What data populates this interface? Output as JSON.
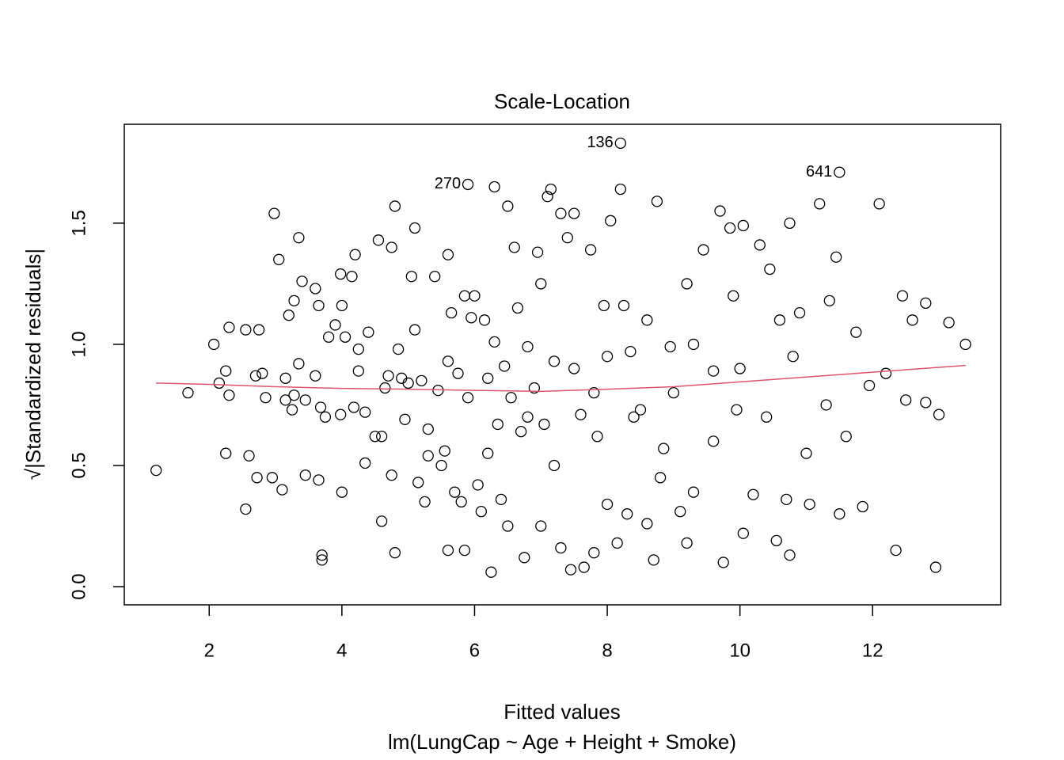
{
  "chart_data": {
    "type": "scatter",
    "title": "Scale-Location",
    "x_label": "Fitted values",
    "subtitle": "lm(LungCap ~ Age + Height + Smoke)",
    "y_label": "√|Standardized residuals|",
    "xlim": [
      0.72,
      13.93
    ],
    "ylim": [
      -0.075,
      1.908
    ],
    "xticks": [
      2,
      4,
      6,
      8,
      10,
      12
    ],
    "yticks": [
      {
        "value": 0,
        "label": "0.0"
      },
      0.5,
      {
        "value": 1,
        "label": "1.0"
      },
      1.5
    ],
    "color": "#000000",
    "x": [
      1.2,
      1.68,
      2.07,
      2.15,
      2.25,
      2.3,
      2.25,
      2.3,
      2.55,
      2.55,
      2.6,
      2.7,
      2.75,
      2.8,
      2.72,
      2.85,
      2.98,
      2.95,
      3.05,
      3.1,
      3.15,
      3.15,
      3.2,
      3.28,
      3.28,
      3.25,
      3.35,
      3.35,
      3.4,
      3.45,
      3.45,
      3.6,
      3.6,
      3.65,
      3.65,
      3.68,
      3.7,
      3.7,
      3.75,
      3.8,
      3.9,
      3.98,
      3.98,
      4.0,
      4.0,
      4.05,
      4.15,
      4.18,
      4.2,
      4.25,
      4.25,
      4.35,
      4.35,
      4.4,
      4.5,
      4.55,
      4.6,
      4.65,
      4.7,
      4.75,
      4.75,
      4.8,
      4.8,
      4.85,
      4.9,
      4.95,
      5.0,
      5.05,
      5.1,
      5.1,
      5.15,
      5.2,
      5.25,
      5.3,
      5.4,
      5.45,
      5.5,
      5.55,
      5.6,
      5.6,
      5.6,
      5.65,
      5.7,
      5.75,
      5.8,
      5.85,
      5.85,
      5.9,
      5.9,
      5.95,
      6.0,
      6.05,
      6.1,
      6.15,
      6.2,
      6.25,
      6.3,
      6.3,
      6.35,
      6.4,
      6.45,
      6.5,
      6.5,
      6.55,
      6.6,
      6.65,
      6.7,
      6.75,
      6.8,
      6.9,
      6.95,
      7.0,
      7.05,
      7.1,
      7.15,
      7.2,
      7.3,
      7.3,
      7.4,
      7.45,
      7.5,
      7.6,
      7.65,
      7.75,
      7.8,
      7.85,
      7.95,
      8.0,
      8.05,
      8.15,
      8.2,
      8.2,
      8.25,
      8.3,
      8.35,
      8.5,
      8.6,
      8.7,
      8.75,
      8.85,
      8.95,
      9.1,
      9.2,
      9.3,
      9.45,
      9.6,
      9.7,
      9.75,
      9.85,
      9.95,
      10.05,
      10.05,
      10.2,
      10.3,
      10.45,
      10.55,
      10.7,
      10.75,
      10.75,
      10.9,
      11.0,
      11.05,
      11.2,
      11.35,
      11.45,
      11.5,
      11.5,
      11.6,
      11.75,
      11.85,
      11.95,
      12.1,
      12.2,
      12.35,
      12.45,
      12.5,
      12.6,
      12.8,
      12.8,
      12.95,
      13.0,
      13.15,
      13.4,
      7.5,
      7.8,
      8.0,
      8.4,
      8.6,
      9.0,
      9.3,
      9.6,
      10.0,
      10.4,
      6.8,
      7.2,
      8.8,
      9.9,
      10.8,
      11.3,
      6.2,
      5.3,
      4.6,
      7.0,
      9.2,
      10.6
    ],
    "y": [
      0.48,
      0.8,
      1.0,
      0.84,
      0.89,
      1.07,
      0.55,
      0.79,
      1.06,
      0.32,
      0.54,
      0.87,
      1.06,
      0.88,
      0.45,
      0.78,
      1.54,
      0.45,
      1.35,
      0.4,
      0.86,
      0.77,
      1.12,
      1.18,
      0.79,
      0.73,
      1.44,
      0.92,
      1.26,
      0.46,
      0.77,
      1.23,
      0.87,
      1.16,
      0.44,
      0.74,
      0.13,
      0.11,
      0.7,
      1.03,
      1.08,
      1.29,
      0.71,
      1.16,
      0.39,
      1.03,
      1.28,
      0.74,
      1.37,
      0.98,
      0.89,
      0.72,
      0.51,
      1.05,
      0.62,
      1.43,
      0.27,
      0.82,
      0.87,
      1.4,
      0.46,
      1.57,
      0.14,
      0.98,
      0.86,
      0.69,
      0.84,
      1.28,
      1.48,
      1.06,
      0.43,
      0.85,
      0.35,
      0.54,
      1.28,
      0.81,
      0.5,
      0.56,
      1.37,
      0.93,
      0.15,
      1.13,
      0.39,
      0.88,
      0.35,
      1.2,
      0.15,
      1.66,
      0.78,
      1.11,
      1.2,
      0.42,
      0.31,
      1.1,
      0.86,
      0.06,
      1.65,
      1.01,
      0.67,
      0.36,
      0.91,
      1.57,
      0.25,
      0.78,
      1.4,
      1.15,
      0.64,
      0.12,
      0.99,
      0.82,
      1.38,
      0.25,
      0.67,
      1.61,
      1.64,
      0.93,
      1.54,
      0.16,
      1.44,
      0.07,
      1.54,
      0.71,
      0.08,
      1.39,
      0.14,
      0.62,
      1.16,
      0.34,
      1.51,
      0.18,
      1.83,
      1.64,
      1.16,
      0.3,
      0.97,
      0.73,
      0.26,
      0.11,
      1.59,
      0.57,
      0.99,
      0.31,
      0.18,
      0.39,
      1.39,
      0.89,
      1.55,
      0.1,
      1.48,
      0.73,
      1.49,
      0.22,
      0.38,
      1.41,
      1.31,
      0.19,
      0.36,
      1.5,
      0.13,
      1.13,
      0.55,
      0.34,
      1.58,
      1.18,
      1.36,
      1.71,
      0.3,
      0.62,
      1.05,
      0.33,
      0.83,
      1.58,
      0.88,
      0.15,
      1.2,
      0.77,
      1.1,
      1.17,
      0.76,
      0.08,
      0.71,
      1.09,
      1.0,
      0.9,
      0.8,
      0.95,
      0.7,
      1.1,
      0.8,
      1.0,
      0.6,
      0.9,
      0.7,
      0.7,
      0.5,
      0.45,
      1.2,
      0.95,
      0.75,
      0.55,
      0.65,
      0.62,
      1.25,
      1.25,
      1.1
    ],
    "smooth": {
      "color": "#DF536B",
      "x": [
        1.2,
        2,
        3,
        4,
        5,
        6,
        7,
        8,
        9,
        10,
        11,
        12,
        13,
        13.4
      ],
      "y": [
        0.84,
        0.835,
        0.825,
        0.818,
        0.815,
        0.81,
        0.806,
        0.815,
        0.825,
        0.845,
        0.865,
        0.885,
        0.905,
        0.913
      ]
    },
    "annotations": [
      {
        "text": "136",
        "x": 8.2,
        "y": 1.83
      },
      {
        "text": "270",
        "x": 5.9,
        "y": 1.66
      },
      {
        "text": "641",
        "x": 11.5,
        "y": 1.71
      }
    ]
  }
}
